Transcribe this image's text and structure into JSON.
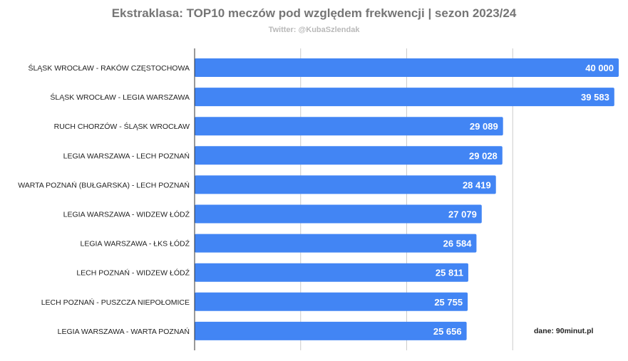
{
  "title": "Ekstraklasa: TOP10 meczów pod względem frekwencji | sezon 2023/24",
  "subtitle": "Twitter: @KubaSzlendak",
  "source": "dane: 90minut.pl",
  "colors": {
    "bar": "#4285f4",
    "grid": "#cccccc",
    "axis": "#333333"
  },
  "chart_data": {
    "type": "bar",
    "orientation": "horizontal",
    "categories": [
      "ŚLĄSK WROCŁAW - RAKÓW CZĘSTOCHOWA",
      "ŚLĄSK WROCŁAW - LEGIA WARSZAWA",
      "RUCH CHORZÓW - ŚLĄSK WROCŁAW",
      "LEGIA WARSZAWA - LECH POZNAŃ",
      "WARTA POZNAŃ (BUŁGARSKA) - LECH POZNAŃ",
      "LEGIA WARSZAWA - WIDZEW ŁÓDŹ",
      "LEGIA WARSZAWA - ŁKS ŁÓDŹ",
      "LECH POZNAŃ - WIDZEW ŁÓDŹ",
      "LECH POZNAŃ - PUSZCZA NIEPOŁOMICE",
      "LEGIA WARSZAWA - WARTA POZNAŃ"
    ],
    "values": [
      40000,
      39583,
      29089,
      29028,
      28419,
      27079,
      26584,
      25811,
      25755,
      25656
    ],
    "value_labels": [
      "40 000",
      "39 583",
      "29 089",
      "29 028",
      "28 419",
      "27 079",
      "26 584",
      "25 811",
      "25 755",
      "25 656"
    ],
    "xlim": [
      0,
      40000
    ],
    "grid": true,
    "legend": "none"
  }
}
